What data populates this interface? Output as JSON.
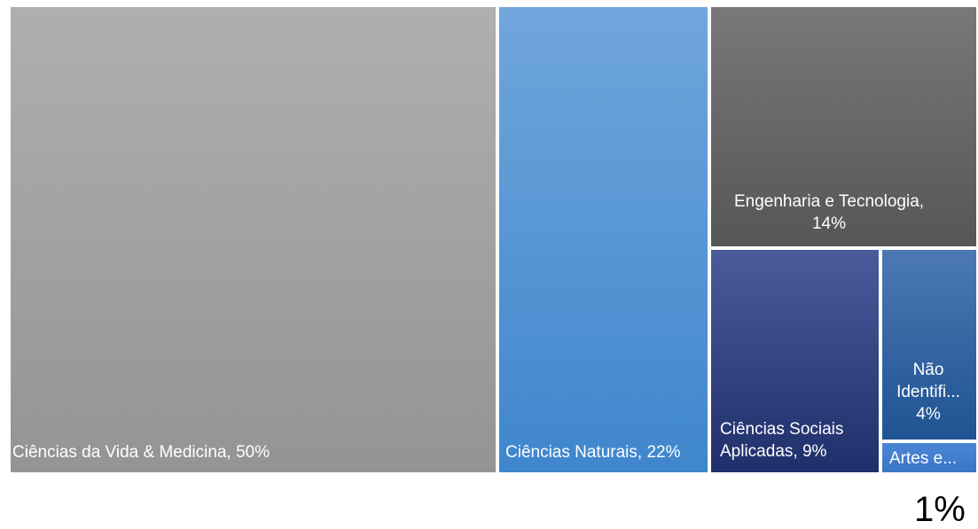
{
  "chart_data": {
    "type": "treemap",
    "title": "",
    "series": [
      {
        "items": [
          {
            "label": "Ciências da Vida & Medicina",
            "value": 50,
            "display": "Ciências da Vida & Medicina, 50%",
            "color_top": "#afafaf",
            "color_bottom": "#949494"
          },
          {
            "label": "Ciências Naturais",
            "value": 22,
            "display": "Ciências Naturais, 22%",
            "color_top": "#70a6dc",
            "color_bottom": "#3f86cd"
          },
          {
            "label": "Engenharia e Tecnologia",
            "value": 14,
            "display": "Engenharia e Tecnologia,\n14%",
            "color_top": "#787878",
            "color_bottom": "#565656"
          },
          {
            "label": "Ciências Sociais Aplicadas",
            "value": 9,
            "display": "Ciências Sociais\nAplicadas, 9%",
            "color_top": "#4a5b9a",
            "color_bottom": "#1f2f6b"
          },
          {
            "label": "Não Identifi...",
            "value": 4,
            "display": "Não\nIdentifi...\n4%",
            "color_top": "#4c79b2",
            "color_bottom": "#1f5393"
          },
          {
            "label": "Artes e...",
            "value": 1,
            "display": "Artes e...",
            "color_top": "#4a86d8",
            "color_bottom": "#3b75c5"
          }
        ]
      }
    ],
    "annotations": [
      {
        "text": "1%",
        "target": "Artes e..."
      }
    ]
  }
}
